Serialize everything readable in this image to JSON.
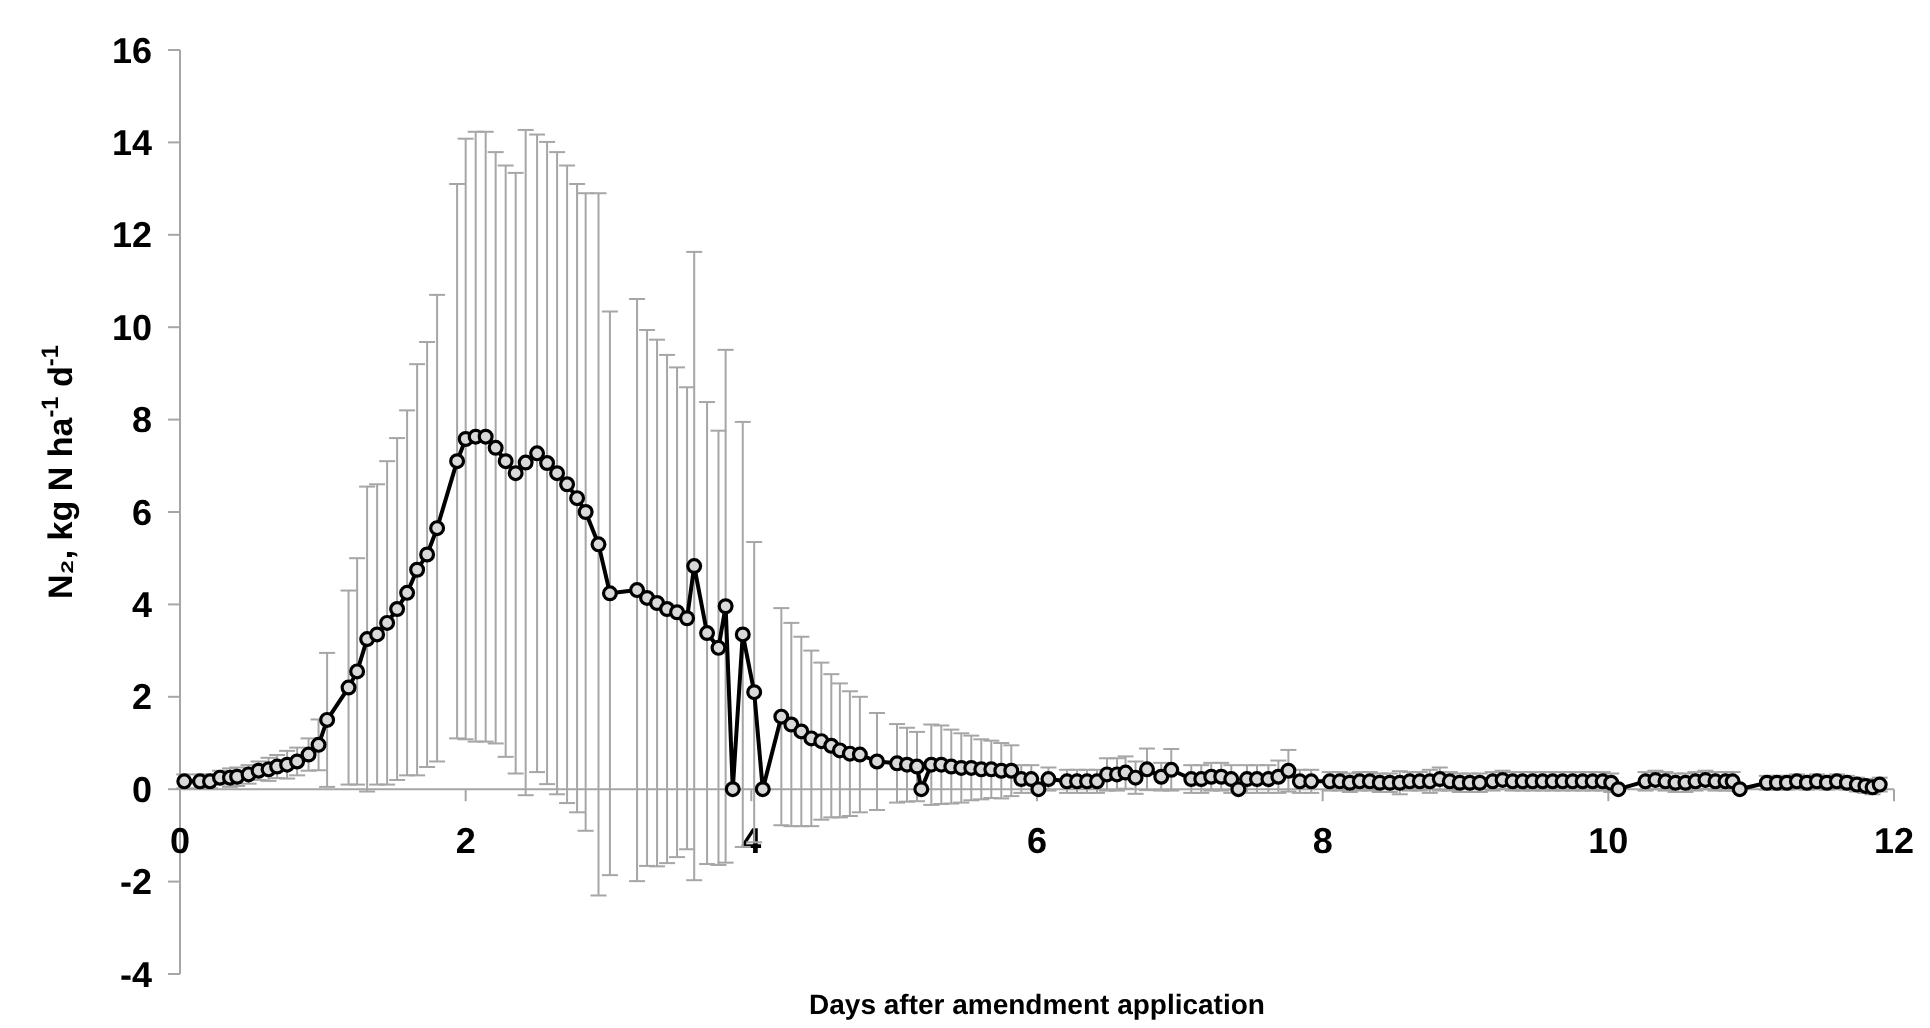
{
  "chart_data": {
    "type": "line",
    "xlabel": "Days after amendment application",
    "ylabel": "N₂, kg N ha$^{-1}$ d$^{-1}$",
    "xlim": [
      0,
      12
    ],
    "xticks": [
      0,
      2,
      4,
      6,
      8,
      10,
      12
    ],
    "ylim": [
      -4,
      16
    ],
    "yticks": [
      -4,
      -2,
      0,
      2,
      4,
      6,
      8,
      10,
      12,
      14,
      16
    ],
    "marker": "circle",
    "line_style": "solid",
    "color": "#000000",
    "x": [
      0.03,
      0.14,
      0.21,
      0.28,
      0.35,
      0.4,
      0.48,
      0.55,
      0.62,
      0.68,
      0.75,
      0.82,
      0.9,
      0.97,
      1.03,
      1.18,
      1.24,
      1.31,
      1.38,
      1.45,
      1.52,
      1.59,
      1.66,
      1.73,
      1.8,
      1.94,
      2.0,
      2.07,
      2.14,
      2.21,
      2.28,
      2.35,
      2.42,
      2.5,
      2.57,
      2.64,
      2.71,
      2.78,
      2.84,
      2.93,
      3.01,
      3.2,
      3.27,
      3.34,
      3.41,
      3.48,
      3.55,
      3.6,
      3.69,
      3.77,
      3.82,
      3.87,
      3.94,
      4.02,
      4.08,
      4.21,
      4.28,
      4.35,
      4.42,
      4.49,
      4.56,
      4.62,
      4.69,
      4.76,
      4.88,
      5.02,
      5.09,
      5.16,
      5.19,
      5.26,
      5.33,
      5.4,
      5.47,
      5.54,
      5.61,
      5.68,
      5.75,
      5.82,
      5.89,
      5.96,
      6.01,
      6.08,
      6.21,
      6.28,
      6.35,
      6.42,
      6.49,
      6.56,
      6.62,
      6.69,
      6.77,
      6.87,
      6.94,
      7.08,
      7.15,
      7.22,
      7.29,
      7.36,
      7.41,
      7.47,
      7.54,
      7.62,
      7.69,
      7.76,
      7.84,
      7.92,
      8.05,
      8.12,
      8.19,
      8.26,
      8.33,
      8.4,
      8.47,
      8.54,
      8.61,
      8.68,
      8.75,
      8.82,
      8.89,
      8.96,
      9.03,
      9.1,
      9.19,
      9.26,
      9.33,
      9.4,
      9.47,
      9.54,
      9.61,
      9.68,
      9.75,
      9.82,
      9.89,
      9.96,
      10.02,
      10.07,
      10.26,
      10.33,
      10.4,
      10.47,
      10.54,
      10.61,
      10.68,
      10.75,
      10.82,
      10.87,
      10.92,
      11.11,
      11.18,
      11.25,
      11.32,
      11.39,
      11.46,
      11.53,
      11.6,
      11.67,
      11.74,
      11.8,
      11.85,
      11.9
    ],
    "values": [
      0.17,
      0.17,
      0.17,
      0.25,
      0.25,
      0.27,
      0.32,
      0.4,
      0.43,
      0.49,
      0.53,
      0.6,
      0.75,
      0.96,
      1.5,
      2.2,
      2.55,
      3.25,
      3.35,
      3.6,
      3.9,
      4.25,
      4.75,
      5.08,
      5.65,
      7.1,
      7.58,
      7.63,
      7.63,
      7.39,
      7.1,
      6.84,
      7.07,
      7.27,
      7.06,
      6.84,
      6.6,
      6.3,
      6.0,
      5.3,
      4.24,
      4.31,
      4.14,
      4.03,
      3.9,
      3.83,
      3.7,
      4.83,
      3.38,
      3.06,
      3.96,
      0,
      3.35,
      2.1,
      0,
      1.57,
      1.4,
      1.25,
      1.1,
      1.04,
      0.94,
      0.84,
      0.77,
      0.75,
      0.6,
      0.56,
      0.53,
      0.49,
      0,
      0.53,
      0.53,
      0.49,
      0.46,
      0.46,
      0.43,
      0.43,
      0.4,
      0.4,
      0.22,
      0.22,
      0,
      0.22,
      0.17,
      0.17,
      0.17,
      0.17,
      0.32,
      0.32,
      0.36,
      0.25,
      0.43,
      0.27,
      0.42,
      0.22,
      0.22,
      0.27,
      0.27,
      0.22,
      0,
      0.22,
      0.22,
      0.22,
      0.27,
      0.4,
      0.17,
      0.17,
      0.17,
      0.17,
      0.14,
      0.17,
      0.17,
      0.14,
      0.14,
      0.14,
      0.17,
      0.17,
      0.17,
      0.22,
      0.17,
      0.14,
      0.14,
      0.14,
      0.17,
      0.2,
      0.17,
      0.17,
      0.17,
      0.17,
      0.17,
      0.17,
      0.17,
      0.17,
      0.17,
      0.17,
      0.14,
      0,
      0.17,
      0.2,
      0.17,
      0.14,
      0.14,
      0.17,
      0.2,
      0.17,
      0.17,
      0.17,
      0,
      0.14,
      0.14,
      0.14,
      0.17,
      0.14,
      0.17,
      0.14,
      0.17,
      0.14,
      0.1,
      0.07,
      0.04,
      0.1
    ],
    "errors": [
      0.15,
      0.15,
      0.15,
      0.15,
      0.2,
      0.2,
      0.2,
      0.2,
      0.25,
      0.25,
      0.3,
      0.3,
      0.35,
      0.55,
      1.45,
      2.1,
      2.45,
      3.3,
      3.25,
      3.5,
      3.7,
      3.95,
      4.45,
      4.6,
      5.05,
      6.0,
      6.5,
      6.6,
      6.6,
      6.4,
      6.4,
      6.5,
      7.2,
      6.9,
      6.95,
      6.95,
      6.9,
      6.8,
      6.9,
      7.6,
      6.1,
      6.3,
      5.8,
      5.7,
      5.5,
      5.3,
      5.0,
      6.8,
      5.0,
      4.7,
      5.55,
      null,
      4.6,
      3.25,
      null,
      2.35,
      2.2,
      2.05,
      1.9,
      1.7,
      1.55,
      1.45,
      1.35,
      1.25,
      1.05,
      0.85,
      0.8,
      0.75,
      null,
      0.87,
      0.85,
      0.8,
      0.75,
      0.7,
      0.65,
      0.62,
      0.6,
      0.55,
      0.3,
      0.3,
      null,
      0.25,
      0.25,
      0.25,
      0.25,
      0.25,
      0.35,
      0.35,
      0.35,
      0.35,
      0.45,
      0.3,
      0.45,
      0.3,
      0.3,
      0.3,
      0.3,
      0.3,
      null,
      0.3,
      0.3,
      0.3,
      0.35,
      0.45,
      0.25,
      0.25,
      0.2,
      0.2,
      0.2,
      0.2,
      0.2,
      0.2,
      0.2,
      0.25,
      0.2,
      0.2,
      0.25,
      0.25,
      0.2,
      0.2,
      0.2,
      0.2,
      0.2,
      0.2,
      0.2,
      0.2,
      0.2,
      0.2,
      0.2,
      0.2,
      0.2,
      0.2,
      0.2,
      0.2,
      0.2,
      null,
      0.2,
      0.2,
      0.2,
      0.2,
      0.2,
      0.2,
      0.2,
      0.2,
      0.2,
      0.2,
      null,
      0.15,
      0.15,
      0.15,
      0.15,
      0.15,
      0.15,
      0.15,
      0.15,
      0.15,
      0.15,
      0.15,
      0.15,
      0.15
    ]
  }
}
